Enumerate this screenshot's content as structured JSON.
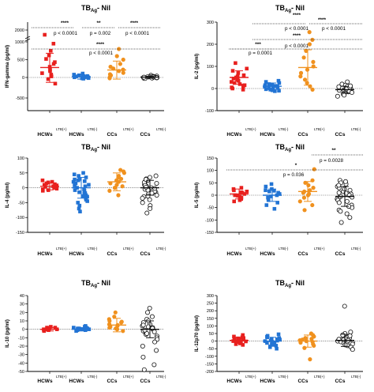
{
  "colors": {
    "HCWs LTB(+)": "#e8201e",
    "HCWs LTB(-)": "#2274d4",
    "CCs LTB(+)": "#f0911e",
    "CCs LTB(-)": "#111111"
  },
  "chart_data": [
    {
      "type": "scatter",
      "title": "TBAg- Nil",
      "ylabel": "IFN-gamma (pg/ml)",
      "categories": [
        "HCWs LTB(+)",
        "HCWs LTB(-)",
        "CCs LTB(+)",
        "CCs LTB(-)"
      ],
      "yticks": [
        "-500",
        "0",
        "500",
        "1000",
        "2000"
      ],
      "series": [
        {
          "name": "HCWs LTB(+)",
          "marker": "square",
          "mean": 280,
          "sd": 400,
          "values": [
            1600,
            950,
            750,
            620,
            520,
            430,
            380,
            300,
            220,
            180,
            120,
            80,
            30,
            -40,
            -150
          ]
        },
        {
          "name": "HCWs LTB(-)",
          "marker": "square",
          "mean": 20,
          "sd": 60,
          "values": [
            110,
            80,
            60,
            40,
            30,
            20,
            15,
            10,
            5,
            0,
            -5,
            -10,
            -20,
            -30,
            25,
            -15
          ]
        },
        {
          "name": "CCs LTB(+)",
          "marker": "circle",
          "mean": 210,
          "sd": 250,
          "values": [
            800,
            600,
            500,
            380,
            300,
            250,
            220,
            180,
            130,
            90,
            60,
            20,
            -20
          ]
        },
        {
          "name": "CCs LTB(-)",
          "marker": "circle",
          "mean": 10,
          "sd": 25,
          "values": [
            60,
            40,
            30,
            20,
            15,
            10,
            5,
            0,
            -5,
            -10,
            -15,
            -20,
            -25,
            8,
            12,
            3,
            -3,
            18
          ]
        }
      ],
      "annotations": [
        {
          "text": "****",
          "between": [
            "HCWs LTB(+)",
            "HCWs LTB(-)"
          ]
        },
        {
          "text": "**",
          "between": [
            "HCWs LTB(-)",
            "CCs LTB(+)"
          ]
        },
        {
          "text": "****",
          "between": [
            "CCs LTB(+)",
            "CCs LTB(-)"
          ]
        },
        {
          "text": "p < 0.0001",
          "between": [
            "HCWs LTB(+)",
            "HCWs LTB(-)"
          ]
        },
        {
          "text": "p = 0.002",
          "between": [
            "HCWs LTB(-)",
            "CCs LTB(+)"
          ]
        },
        {
          "text": "p < 0.0001",
          "between": [
            "CCs LTB(+)",
            "CCs LTB(-)"
          ]
        },
        {
          "text": "****",
          "between": [
            "HCWs LTB(+)",
            "CCs LTB(-)"
          ]
        },
        {
          "text": "p < 0.0001",
          "between": [
            "HCWs LTB(+)",
            "CCs LTB(-)"
          ]
        }
      ]
    },
    {
      "type": "scatter",
      "title": "TBAg- Nil",
      "ylabel": "IL-2 (pg/ml)",
      "categories": [
        "HCWs LTB(+)",
        "HCWs LTB(-)",
        "CCs LTB(+)",
        "CCs LTB(-)"
      ],
      "ylim": [
        -100,
        300
      ],
      "yticks": [
        "-100",
        "0",
        "100",
        "200",
        "300"
      ],
      "series": [
        {
          "name": "HCWs LTB(+)",
          "marker": "square",
          "mean": 50,
          "sd": 30,
          "values": [
            115,
            90,
            80,
            70,
            60,
            55,
            50,
            45,
            40,
            35,
            30,
            25,
            20,
            15,
            10,
            5,
            0,
            -5
          ]
        },
        {
          "name": "HCWs LTB(-)",
          "marker": "square",
          "mean": 10,
          "sd": 15,
          "values": [
            35,
            30,
            25,
            20,
            15,
            12,
            10,
            8,
            5,
            3,
            0,
            -3,
            -5,
            -8,
            -10,
            -12,
            18,
            2
          ]
        },
        {
          "name": "CCs LTB(+)",
          "marker": "circle",
          "mean": 95,
          "sd": 80,
          "values": [
            255,
            220,
            200,
            170,
            140,
            120,
            100,
            85,
            70,
            55,
            40,
            25,
            10,
            -5
          ]
        },
        {
          "name": "CCs LTB(-)",
          "marker": "circle",
          "mean": -5,
          "sd": 15,
          "values": [
            30,
            20,
            15,
            10,
            5,
            0,
            -5,
            -10,
            -15,
            -20,
            -25,
            -30,
            -35,
            2,
            -2,
            -8,
            8,
            -12,
            12,
            -18
          ]
        }
      ],
      "annotations": [
        {
          "text": "****",
          "between": [
            "CCs LTB(+)",
            "CCs LTB(-)"
          ]
        },
        {
          "text": "p < 0.0001",
          "between": [
            "HCWs LTB(-)",
            "CCs LTB(+)"
          ]
        },
        {
          "text": "p < 0.0001",
          "between": [
            "CCs LTB(+)",
            "CCs LTB(-)"
          ]
        },
        {
          "text": "****",
          "between": [
            "HCWs LTB(-)",
            "CCs LTB(+)"
          ]
        },
        {
          "text": "****",
          "between": [
            "HCWs LTB(+)",
            "CCs LTB(-)"
          ]
        },
        {
          "text": "p < 0.0001",
          "between": [
            "HCWs LTB(+)",
            "CCs LTB(-)"
          ]
        },
        {
          "text": "***",
          "between": [
            "HCWs LTB(+)",
            "HCWs LTB(-)"
          ]
        },
        {
          "text": "p = 0.0001",
          "between": [
            "HCWs LTB(+)",
            "HCWs LTB(-)"
          ]
        }
      ]
    },
    {
      "type": "scatter",
      "title": "TBAg- Nil",
      "ylabel": "IL-4 (pg/ml)",
      "categories": [
        "HCWs LTB(+)",
        "HCWs LTB(-)",
        "CCs LTB(+)",
        "CCs LTB(-)"
      ],
      "ylim": [
        -150,
        100
      ],
      "yticks": [
        "-150",
        "-100",
        "-50",
        "0",
        "50",
        "100"
      ],
      "series": [
        {
          "name": "HCWs LTB(+)",
          "marker": "square",
          "mean": 5,
          "sd": 12,
          "values": [
            25,
            20,
            15,
            10,
            8,
            5,
            3,
            0,
            -3,
            -5,
            -8,
            -10,
            12,
            18
          ]
        },
        {
          "name": "HCWs LTB(-)",
          "marker": "square",
          "mean": 0,
          "sd": 35,
          "values": [
            50,
            40,
            35,
            30,
            25,
            20,
            15,
            10,
            5,
            0,
            -5,
            -10,
            -15,
            -20,
            -25,
            -30,
            -35,
            -40,
            -50,
            -60,
            -70,
            -80,
            22,
            -18,
            8,
            -8,
            28,
            -28,
            45,
            -45
          ]
        },
        {
          "name": "CCs LTB(+)",
          "marker": "circle",
          "mean": 20,
          "sd": 30,
          "values": [
            60,
            55,
            40,
            35,
            30,
            25,
            20,
            15,
            10,
            5,
            0,
            -10,
            -25,
            50
          ]
        },
        {
          "name": "CCs LTB(-)",
          "marker": "circle",
          "mean": 0,
          "sd": 25,
          "values": [
            40,
            35,
            30,
            25,
            20,
            15,
            10,
            5,
            0,
            -5,
            -10,
            -15,
            -20,
            -25,
            -30,
            -35,
            -40,
            -50,
            -60,
            -70,
            -85,
            12,
            -12,
            18,
            -18,
            28,
            -28,
            8,
            -8,
            2,
            -2
          ]
        }
      ]
    },
    {
      "type": "scatter",
      "title": "TBAg- Nil",
      "ylabel": "IL-5 (pg/ml)",
      "categories": [
        "HCWs LTB(+)",
        "HCWs LTB(-)",
        "CCs LTB(+)",
        "CCs LTB(-)"
      ],
      "ylim": [
        -150,
        150
      ],
      "yticks": [
        "-150",
        "-100",
        "-50",
        "0",
        "50",
        "100",
        "150"
      ],
      "series": [
        {
          "name": "HCWs LTB(+)",
          "marker": "square",
          "mean": 5,
          "sd": 20,
          "values": [
            30,
            25,
            20,
            15,
            10,
            5,
            0,
            -5,
            -10,
            -15,
            -20,
            -25,
            12,
            -2
          ]
        },
        {
          "name": "HCWs LTB(-)",
          "marker": "square",
          "mean": 0,
          "sd": 25,
          "values": [
            45,
            35,
            25,
            20,
            15,
            10,
            5,
            0,
            -5,
            -10,
            -20,
            -30,
            -40,
            -55,
            18,
            -18
          ]
        },
        {
          "name": "CCs LTB(+)",
          "marker": "circle",
          "mean": 15,
          "sd": 40,
          "values": [
            105,
            60,
            50,
            40,
            30,
            20,
            15,
            10,
            5,
            0,
            -10,
            -25,
            -40,
            -60
          ]
        },
        {
          "name": "CCs LTB(-)",
          "marker": "circle",
          "mean": -5,
          "sd": 40,
          "values": [
            60,
            50,
            45,
            35,
            30,
            20,
            15,
            10,
            5,
            0,
            -5,
            -10,
            -15,
            -20,
            -30,
            -40,
            -50,
            -60,
            -75,
            -90,
            -110,
            25,
            -25,
            40,
            -45,
            8,
            -8,
            55,
            -65
          ]
        }
      ],
      "annotations": [
        {
          "text": "**",
          "between": [
            "CCs LTB(+)",
            "CCs LTB(-)"
          ]
        },
        {
          "text": "p = 0.0028",
          "between": [
            "CCs LTB(+)",
            "CCs LTB(-)"
          ]
        },
        {
          "text": "*",
          "between": [
            "HCWs LTB(+)",
            "CCs LTB(-)"
          ]
        },
        {
          "text": "p = 0.036",
          "between": [
            "HCWs LTB(+)",
            "CCs LTB(-)"
          ]
        }
      ]
    },
    {
      "type": "scatter",
      "title": "TBAg- Nil",
      "ylabel": "IL-10 (pg/ml)",
      "categories": [
        "HCWs LTB(+)",
        "HCWs LTB(-)",
        "CCs LTB(+)",
        "CCs LTB(-)"
      ],
      "ylim": [
        -50,
        40
      ],
      "yticks": [
        "-50",
        "-40",
        "-30",
        "-20",
        "-10",
        "0",
        "10",
        "20",
        "30",
        "40"
      ],
      "series": [
        {
          "name": "HCWs LTB(+)",
          "marker": "square",
          "mean": 0,
          "sd": 2,
          "values": [
            3,
            2,
            1,
            0,
            -1,
            -2,
            1,
            0,
            2,
            -1,
            0,
            1
          ]
        },
        {
          "name": "HCWs LTB(-)",
          "marker": "square",
          "mean": 0,
          "sd": 2,
          "values": [
            4,
            3,
            2,
            1,
            0,
            -1,
            -2,
            0,
            1,
            2,
            0,
            -1,
            1,
            0
          ]
        },
        {
          "name": "CCs LTB(+)",
          "marker": "circle",
          "mean": 5,
          "sd": 8,
          "values": [
            20,
            15,
            12,
            10,
            8,
            6,
            4,
            2,
            0,
            -2,
            5,
            3,
            9,
            1
          ]
        },
        {
          "name": "CCs LTB(-)",
          "marker": "circle",
          "mean": 0,
          "sd": 10,
          "values": [
            25,
            20,
            15,
            12,
            10,
            8,
            6,
            4,
            2,
            0,
            -2,
            -4,
            -6,
            -8,
            -10,
            -12,
            -15,
            -20,
            -25,
            -33,
            -42,
            -48,
            3,
            -3,
            5,
            -5,
            1,
            -1
          ]
        }
      ]
    },
    {
      "type": "scatter",
      "title": "TBAg- Nil",
      "ylabel": "IL-12p70 (pg/ml)",
      "categories": [
        "HCWs LTB(+)",
        "HCWs LTB(-)",
        "CCs LTB(+)",
        "CCs LTB(-)"
      ],
      "ylim": [
        -200,
        300
      ],
      "yticks": [
        "-200",
        "-150",
        "-100",
        "-50",
        "0",
        "50",
        "100",
        "150",
        "200",
        "250",
        "300"
      ],
      "series": [
        {
          "name": "HCWs LTB(+)",
          "marker": "square",
          "mean": 5,
          "sd": 20,
          "values": [
            40,
            30,
            25,
            20,
            15,
            10,
            5,
            0,
            -5,
            -10,
            -15,
            -20,
            -25,
            12,
            -2,
            18,
            8
          ]
        },
        {
          "name": "HCWs LTB(-)",
          "marker": "square",
          "mean": 0,
          "sd": 25,
          "values": [
            45,
            35,
            25,
            20,
            15,
            10,
            5,
            0,
            -5,
            -10,
            -15,
            -20,
            -30,
            -40,
            -50,
            12,
            -12,
            28,
            -25,
            3
          ]
        },
        {
          "name": "CCs LTB(+)",
          "marker": "circle",
          "mean": 0,
          "sd": 40,
          "values": [
            50,
            40,
            30,
            20,
            10,
            5,
            0,
            -10,
            -20,
            -30,
            -45,
            -120,
            15,
            -5
          ]
        },
        {
          "name": "CCs LTB(-)",
          "marker": "circle",
          "mean": 5,
          "sd": 40,
          "values": [
            230,
            60,
            50,
            40,
            30,
            25,
            20,
            15,
            10,
            5,
            0,
            -5,
            -10,
            -15,
            -20,
            -30,
            -40,
            -55,
            12,
            -12,
            35,
            -25,
            8
          ]
        }
      ]
    }
  ]
}
